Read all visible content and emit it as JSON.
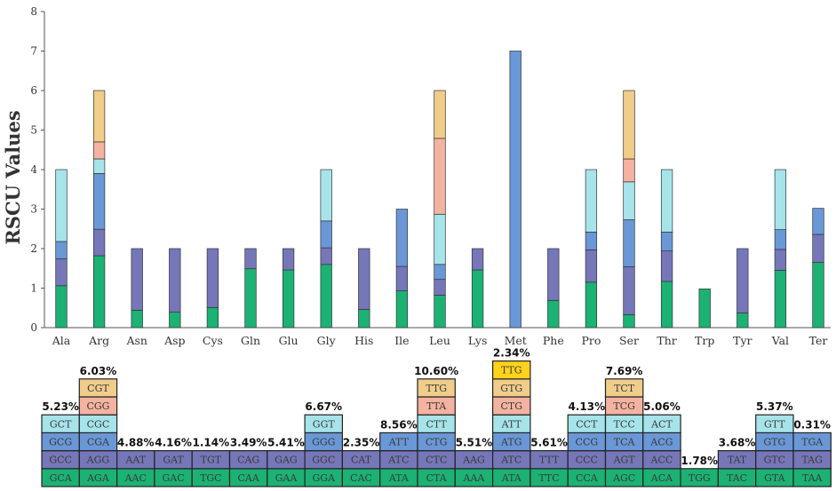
{
  "colors": {
    "green": "#1bb274",
    "purple": "#7577b8",
    "blue": "#6a97d6",
    "cyan": "#a6e4ea",
    "salmon": "#f4b3a0",
    "tan": "#f0cd8a",
    "yellow": "#ffd21c"
  },
  "chart_data": {
    "type": "bar",
    "stacked": true,
    "title": "",
    "xlabel": "",
    "ylabel": "RSCU Values",
    "ylim": [
      0,
      8
    ],
    "yticks": [
      0,
      1,
      2,
      3,
      4,
      5,
      6,
      7,
      8
    ],
    "grid": false,
    "categories": [
      "Ala",
      "Arg",
      "Asn",
      "Asp",
      "Cys",
      "Gln",
      "Glu",
      "Gly",
      "His",
      "Ile",
      "Leu",
      "Lys",
      "Met",
      "Phe",
      "Pro",
      "Ser",
      "Thr",
      "Trp",
      "Tyr",
      "Val",
      "Ter"
    ],
    "stacks": [
      {
        "aa": "Ala",
        "segments": [
          {
            "value": 1.06,
            "color": "green"
          },
          {
            "value": 0.68,
            "color": "purple"
          },
          {
            "value": 0.44,
            "color": "blue"
          },
          {
            "value": 1.82,
            "color": "cyan"
          }
        ]
      },
      {
        "aa": "Arg",
        "segments": [
          {
            "value": 1.82,
            "color": "green"
          },
          {
            "value": 0.67,
            "color": "purple"
          },
          {
            "value": 1.41,
            "color": "blue"
          },
          {
            "value": 0.37,
            "color": "cyan"
          },
          {
            "value": 0.43,
            "color": "salmon"
          },
          {
            "value": 1.3,
            "color": "tan"
          }
        ]
      },
      {
        "aa": "Asn",
        "segments": [
          {
            "value": 0.44,
            "color": "green"
          },
          {
            "value": 1.56,
            "color": "purple"
          }
        ]
      },
      {
        "aa": "Asp",
        "segments": [
          {
            "value": 0.39,
            "color": "green"
          },
          {
            "value": 1.61,
            "color": "purple"
          }
        ]
      },
      {
        "aa": "Cys",
        "segments": [
          {
            "value": 0.51,
            "color": "green"
          },
          {
            "value": 1.49,
            "color": "purple"
          }
        ]
      },
      {
        "aa": "Gln",
        "segments": [
          {
            "value": 1.49,
            "color": "green"
          },
          {
            "value": 0.51,
            "color": "purple"
          }
        ]
      },
      {
        "aa": "Glu",
        "segments": [
          {
            "value": 1.46,
            "color": "green"
          },
          {
            "value": 0.54,
            "color": "purple"
          }
        ]
      },
      {
        "aa": "Gly",
        "segments": [
          {
            "value": 1.6,
            "color": "green"
          },
          {
            "value": 0.42,
            "color": "purple"
          },
          {
            "value": 0.68,
            "color": "blue"
          },
          {
            "value": 1.3,
            "color": "cyan"
          }
        ]
      },
      {
        "aa": "His",
        "segments": [
          {
            "value": 0.46,
            "color": "green"
          },
          {
            "value": 1.54,
            "color": "purple"
          }
        ]
      },
      {
        "aa": "Ile",
        "segments": [
          {
            "value": 0.93,
            "color": "green"
          },
          {
            "value": 0.62,
            "color": "purple"
          },
          {
            "value": 1.45,
            "color": "blue"
          }
        ]
      },
      {
        "aa": "Leu",
        "segments": [
          {
            "value": 0.82,
            "color": "green"
          },
          {
            "value": 0.4,
            "color": "purple"
          },
          {
            "value": 0.38,
            "color": "blue"
          },
          {
            "value": 1.27,
            "color": "cyan"
          },
          {
            "value": 1.92,
            "color": "salmon"
          },
          {
            "value": 1.21,
            "color": "tan"
          }
        ]
      },
      {
        "aa": "Lys",
        "segments": [
          {
            "value": 1.46,
            "color": "green"
          },
          {
            "value": 0.54,
            "color": "purple"
          }
        ]
      },
      {
        "aa": "Met",
        "segments": [
          {
            "value": 7.0,
            "color": "blue"
          }
        ]
      },
      {
        "aa": "Phe",
        "segments": [
          {
            "value": 0.69,
            "color": "green"
          },
          {
            "value": 1.31,
            "color": "purple"
          }
        ]
      },
      {
        "aa": "Pro",
        "segments": [
          {
            "value": 1.15,
            "color": "green"
          },
          {
            "value": 0.82,
            "color": "purple"
          },
          {
            "value": 0.45,
            "color": "blue"
          },
          {
            "value": 1.58,
            "color": "cyan"
          }
        ]
      },
      {
        "aa": "Ser",
        "segments": [
          {
            "value": 0.33,
            "color": "green"
          },
          {
            "value": 1.21,
            "color": "purple"
          },
          {
            "value": 1.19,
            "color": "blue"
          },
          {
            "value": 0.96,
            "color": "cyan"
          },
          {
            "value": 0.58,
            "color": "salmon"
          },
          {
            "value": 1.73,
            "color": "tan"
          }
        ]
      },
      {
        "aa": "Thr",
        "segments": [
          {
            "value": 1.17,
            "color": "green"
          },
          {
            "value": 0.77,
            "color": "purple"
          },
          {
            "value": 0.48,
            "color": "blue"
          },
          {
            "value": 1.58,
            "color": "cyan"
          }
        ]
      },
      {
        "aa": "Trp",
        "segments": [
          {
            "value": 0.98,
            "color": "green"
          }
        ]
      },
      {
        "aa": "Tyr",
        "segments": [
          {
            "value": 0.37,
            "color": "green"
          },
          {
            "value": 1.63,
            "color": "purple"
          }
        ]
      },
      {
        "aa": "Val",
        "segments": [
          {
            "value": 1.45,
            "color": "green"
          },
          {
            "value": 0.53,
            "color": "purple"
          },
          {
            "value": 0.5,
            "color": "blue"
          },
          {
            "value": 1.52,
            "color": "cyan"
          }
        ]
      },
      {
        "aa": "Ter",
        "segments": [
          {
            "value": 1.65,
            "color": "green"
          },
          {
            "value": 0.71,
            "color": "purple"
          },
          {
            "value": 0.66,
            "color": "blue"
          }
        ]
      }
    ]
  },
  "codon_table": [
    {
      "aa": "Ala",
      "percent": "5.23%",
      "codons": [
        "GCA",
        "GCC",
        "GCG",
        "GCT"
      ]
    },
    {
      "aa": "Arg",
      "percent": "6.03%",
      "codons": [
        "AGA",
        "AGG",
        "CGA",
        "CGC",
        "CGG",
        "CGT"
      ]
    },
    {
      "aa": "Asn",
      "percent": "4.88%",
      "codons": [
        "AAC",
        "AAT"
      ]
    },
    {
      "aa": "Asp",
      "percent": "4.16%",
      "codons": [
        "GAC",
        "GAT"
      ]
    },
    {
      "aa": "Cys",
      "percent": "1.14%",
      "codons": [
        "TGC",
        "TGT"
      ]
    },
    {
      "aa": "Gln",
      "percent": "3.49%",
      "codons": [
        "CAA",
        "CAG"
      ]
    },
    {
      "aa": "Glu",
      "percent": "5.41%",
      "codons": [
        "GAA",
        "GAG"
      ]
    },
    {
      "aa": "Gly",
      "percent": "6.67%",
      "codons": [
        "GGA",
        "GGC",
        "GGG",
        "GGT"
      ]
    },
    {
      "aa": "His",
      "percent": "2.35%",
      "codons": [
        "CAC",
        "CAT"
      ]
    },
    {
      "aa": "Ile",
      "percent": "8.56%",
      "codons": [
        "ATA",
        "ATC",
        "ATT"
      ]
    },
    {
      "aa": "Leu",
      "percent": "10.60%",
      "codons": [
        "CTA",
        "CTC",
        "CTG",
        "CTT",
        "TTA",
        "TTG"
      ]
    },
    {
      "aa": "Lys",
      "percent": "5.51%",
      "codons": [
        "AAA",
        "AAG"
      ]
    },
    {
      "aa": "Met",
      "percent": "2.34%",
      "codons": [
        "ATA",
        "ATC",
        "ATG",
        "ATT",
        "CTG",
        "GTG",
        "TTG"
      ]
    },
    {
      "aa": "Phe",
      "percent": "5.61%",
      "codons": [
        "TTC",
        "TTT"
      ]
    },
    {
      "aa": "Pro",
      "percent": "4.13%",
      "codons": [
        "CCA",
        "CCC",
        "CCG",
        "CCT"
      ]
    },
    {
      "aa": "Ser",
      "percent": "7.69%",
      "codons": [
        "AGC",
        "AGT",
        "TCA",
        "TCC",
        "TCG",
        "TCT"
      ]
    },
    {
      "aa": "Thr",
      "percent": "5.06%",
      "codons": [
        "ACA",
        "ACC",
        "ACG",
        "ACT"
      ]
    },
    {
      "aa": "Trp",
      "percent": "1.78%",
      "codons": [
        "TGG"
      ]
    },
    {
      "aa": "Tyr",
      "percent": "3.68%",
      "codons": [
        "TAC",
        "TAT"
      ]
    },
    {
      "aa": "Val",
      "percent": "5.37%",
      "codons": [
        "GTA",
        "GTC",
        "GTG",
        "GTT"
      ]
    },
    {
      "aa": "Ter",
      "percent": "0.31%",
      "codons": [
        "TAA",
        "TAG",
        "TGA"
      ]
    }
  ],
  "codon_colors": {
    "Met": [
      "green",
      "purple",
      "blue",
      "cyan",
      "salmon",
      "tan",
      "yellow"
    ],
    "default": [
      "green",
      "purple",
      "blue",
      "cyan",
      "salmon",
      "tan"
    ]
  }
}
